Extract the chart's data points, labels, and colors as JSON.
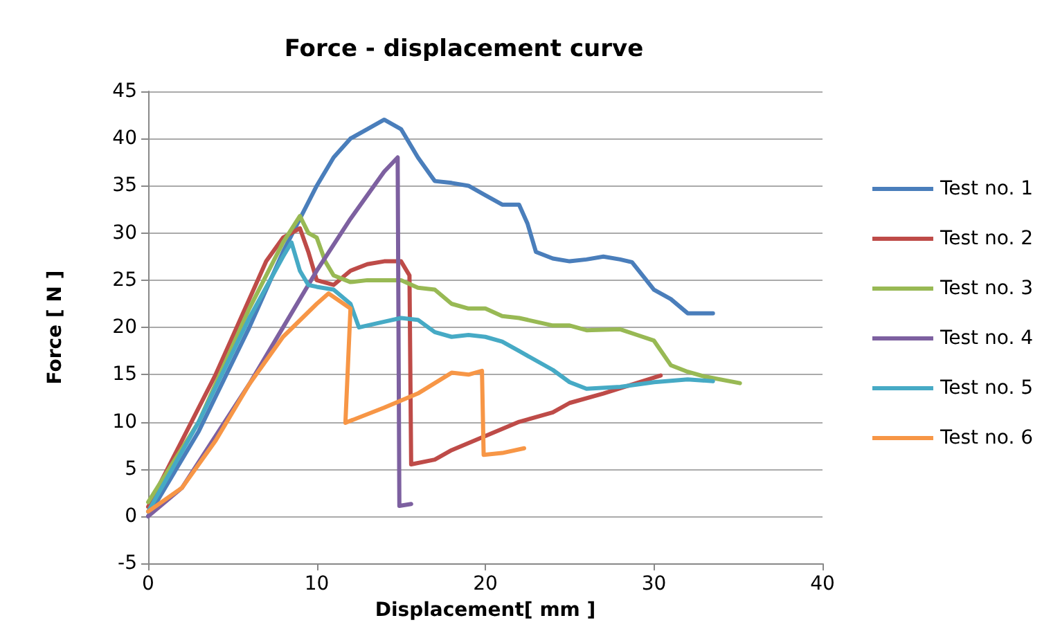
{
  "chart_data": {
    "type": "line",
    "title": "Force - displacement curve",
    "xlabel": "Displacement[ mm ]",
    "ylabel": "Force [ N ]",
    "xlim": [
      0,
      40
    ],
    "xticks": [
      0,
      10,
      20,
      30,
      40
    ],
    "ylim": [
      -5,
      45
    ],
    "yticks": [
      -5,
      0,
      5,
      10,
      15,
      20,
      25,
      30,
      35,
      40,
      45
    ],
    "grid": "y",
    "legend": "right",
    "marker": "none",
    "line_style": "solid",
    "series": [
      {
        "name": "Test no. 1",
        "color": "#4a7ebb",
        "x": [
          0,
          3,
          6,
          8,
          10,
          11,
          12,
          13,
          14,
          15,
          16,
          17,
          18,
          19,
          20,
          21,
          22,
          22.5,
          23,
          24,
          25,
          26,
          27,
          28,
          28.7,
          30,
          31,
          32,
          33.5
        ],
        "values": [
          0,
          9,
          20,
          28,
          35,
          38,
          40,
          41,
          42,
          41,
          38,
          35.5,
          35.3,
          35,
          34,
          33,
          33,
          31,
          28,
          27.3,
          27,
          27.2,
          27.5,
          27.2,
          26.9,
          24,
          23,
          21.5,
          21.5
        ]
      },
      {
        "name": "Test no. 2",
        "color": "#be4b48",
        "x": [
          0,
          4,
          6,
          7,
          8,
          9,
          9.5,
          10,
          11,
          12,
          13,
          14,
          15,
          15.5,
          15.6,
          17,
          18,
          20,
          22,
          24,
          25,
          27,
          30.4
        ],
        "values": [
          1,
          15,
          23,
          27,
          29.5,
          30.5,
          28,
          25,
          24.5,
          26,
          26.7,
          27,
          27,
          25.5,
          5.5,
          6,
          7,
          8.5,
          10,
          11,
          12,
          13,
          14.9
        ]
      },
      {
        "name": "Test no. 3",
        "color": "#98b954",
        "x": [
          0,
          3,
          6,
          8,
          9,
          9.5,
          10,
          10.5,
          11,
          12,
          13,
          15,
          16,
          17,
          18,
          19,
          20,
          21,
          22,
          24,
          25,
          26,
          28,
          29,
          30,
          31,
          32,
          33,
          35.1
        ],
        "values": [
          1.5,
          10,
          22,
          29,
          31.8,
          30,
          29.5,
          27,
          25.5,
          24.8,
          25,
          25,
          24.2,
          24,
          22.5,
          22,
          22,
          21.2,
          21,
          20.2,
          20.2,
          19.7,
          19.8,
          19.2,
          18.6,
          16,
          15.3,
          14.8,
          14.1
        ]
      },
      {
        "name": "Test no. 4",
        "color": "#7d60a0",
        "x": [
          0,
          2,
          6,
          8,
          10,
          12,
          14,
          14.8,
          14.9,
          15.6
        ],
        "values": [
          0,
          3,
          14,
          20,
          26,
          31.5,
          36.5,
          38,
          1.1,
          1.3
        ]
      },
      {
        "name": "Test no. 5",
        "color": "#46aac5",
        "x": [
          0,
          3,
          6,
          8,
          8.5,
          9,
          9.5,
          10,
          11,
          12,
          12.5,
          14,
          15,
          16,
          17,
          18,
          19,
          20,
          21,
          22,
          24,
          25,
          26,
          28,
          30,
          32,
          33.5
        ],
        "values": [
          0.5,
          10,
          21,
          27.5,
          29,
          26,
          24.5,
          24.3,
          24,
          22.5,
          20,
          20.6,
          21,
          20.8,
          19.5,
          19,
          19.2,
          19,
          18.5,
          17.5,
          15.5,
          14.2,
          13.5,
          13.7,
          14.2,
          14.5,
          14.3
        ]
      },
      {
        "name": "Test no. 6",
        "color": "#f79646",
        "x": [
          0,
          2,
          4,
          6,
          8,
          10,
          10.7,
          12,
          11.7,
          14,
          16,
          18,
          19,
          19.8,
          19.9,
          21,
          22.3
        ],
        "values": [
          0.5,
          3,
          8,
          14,
          19,
          22.5,
          23.6,
          22,
          9.9,
          11.5,
          13,
          15.2,
          15,
          15.4,
          6.5,
          6.7,
          7.2
        ]
      }
    ]
  }
}
